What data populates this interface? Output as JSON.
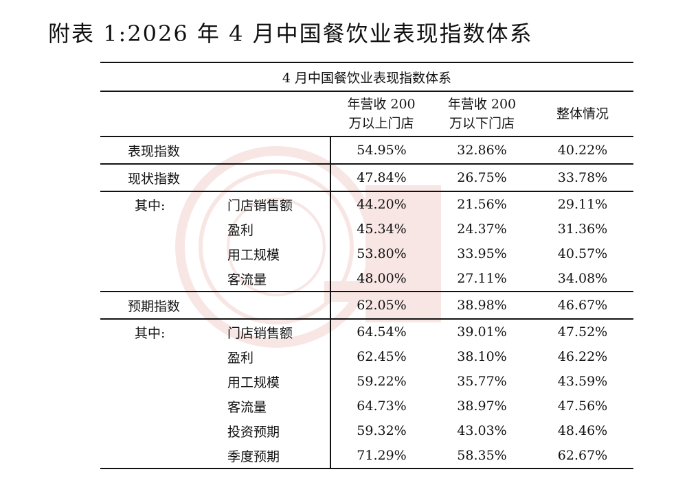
{
  "title": "附表 1:2026 年 4 月中国餐饮业表现指数体系",
  "table": {
    "caption": "4 月中国餐饮业表现指数体系",
    "columns": [
      [
        "年营收 200",
        "万以上门店"
      ],
      [
        "年营收 200",
        "万以下门店"
      ],
      [
        "整体情况"
      ]
    ],
    "performance_index": {
      "label": "表现指数",
      "values": [
        "54.95%",
        "32.86%",
        "40.22%"
      ]
    },
    "current_index": {
      "label": "现状指数",
      "values": [
        "47.84%",
        "26.75%",
        "33.78%"
      ]
    },
    "current_sub": {
      "prefix": "其中:",
      "rows": [
        {
          "label": "门店销售额",
          "values": [
            "44.20%",
            "21.56%",
            "29.11%"
          ]
        },
        {
          "label": "盈利",
          "values": [
            "45.34%",
            "24.37%",
            "31.36%"
          ]
        },
        {
          "label": "用工规模",
          "values": [
            "53.80%",
            "33.95%",
            "40.57%"
          ]
        },
        {
          "label": "客流量",
          "values": [
            "48.00%",
            "27.11%",
            "34.08%"
          ]
        }
      ]
    },
    "expected_index": {
      "label": "预期指数",
      "values": [
        "62.05%",
        "38.98%",
        "46.67%"
      ]
    },
    "expected_sub": {
      "prefix": "其中:",
      "rows": [
        {
          "label": "门店销售额",
          "values": [
            "64.54%",
            "39.01%",
            "47.52%"
          ]
        },
        {
          "label": "盈利",
          "values": [
            "62.45%",
            "38.10%",
            "46.22%"
          ]
        },
        {
          "label": "用工规模",
          "values": [
            "59.22%",
            "35.77%",
            "43.59%"
          ]
        },
        {
          "label": "客流量",
          "values": [
            "64.73%",
            "38.97%",
            "47.56%"
          ]
        },
        {
          "label": "投资预期",
          "values": [
            "59.32%",
            "43.03%",
            "48.46%"
          ]
        },
        {
          "label": "季度预期",
          "values": [
            "71.29%",
            "58.35%",
            "62.67%"
          ]
        }
      ]
    }
  },
  "colors": {
    "text": "#111111",
    "rule": "#111111",
    "watermark": "#c0392b"
  }
}
